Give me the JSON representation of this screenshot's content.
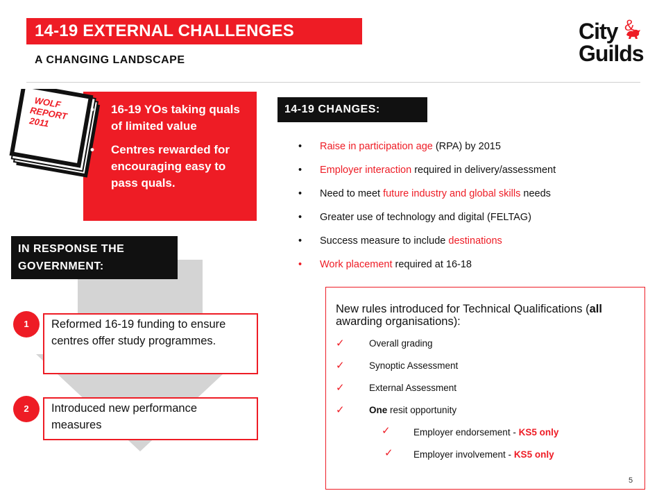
{
  "header": {
    "title": "14-19 EXTERNAL CHALLENGES",
    "subtitle": "A CHANGING LANDSCAPE",
    "logo_line1": "City",
    "logo_amp": "&",
    "logo_line2": "Guilds"
  },
  "wolf": {
    "book_label_line1": "WOLF",
    "book_label_line2": "REPORT",
    "book_label_line3": "2011",
    "items": [
      "16-19 YOs taking quals of limited value",
      "Centres rewarded for encouraging easy to pass quals."
    ]
  },
  "changes": {
    "label": "14-19 CHANGES:",
    "items": [
      {
        "red": "Raise in participation age",
        "rest": " (RPA) by 2015"
      },
      {
        "red": "Employer interaction",
        "rest": " required in delivery/assessment"
      },
      {
        "pre": "Need to meet ",
        "red": "future industry and global skills",
        "rest": " needs"
      },
      {
        "pre": "Greater use of technology and digital (FELTAG)"
      },
      {
        "pre": "Success measure to include ",
        "red": "destinations"
      },
      {
        "red": "Work placement",
        "rest": " required at 16-18"
      }
    ]
  },
  "response": {
    "label": "IN RESPONSE THE GOVERNMENT:",
    "steps": [
      {
        "num": "1",
        "text": "Reformed 16-19 funding to ensure centres offer study programmes."
      },
      {
        "num": "2",
        "text": "Introduced new performance measures"
      }
    ]
  },
  "rules": {
    "title_pre": "New rules introduced for Technical Qualifications (",
    "title_bold": "all",
    "title_post": " awarding organisations):",
    "items": [
      {
        "bold": "",
        "text": "Overall grading"
      },
      {
        "bold": "",
        "text": "Synoptic Assessment"
      },
      {
        "bold": "",
        "text": "External Assessment"
      },
      {
        "bold": "One",
        "text": " resit opportunity"
      }
    ],
    "sub_items": [
      {
        "text": "Employer endorsement  - ",
        "red": "KS5 only"
      },
      {
        "text": "Employer involvement  - ",
        "red": "KS5 only"
      }
    ],
    "tick": "✓"
  },
  "page_number": "5",
  "colors": {
    "accent": "#ee1c25",
    "dark": "#111111",
    "arrow": "#d4d4d4"
  }
}
